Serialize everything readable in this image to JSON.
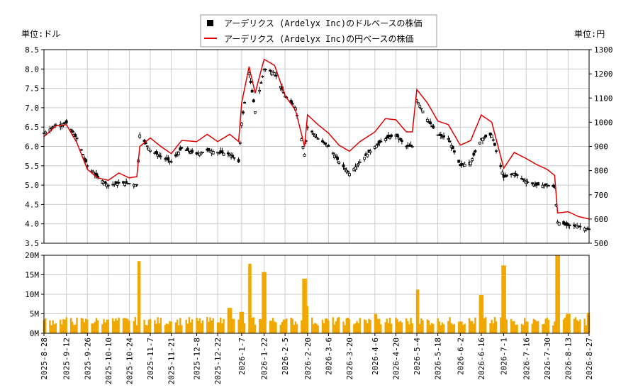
{
  "chart_data": [
    {
      "type": "candlestick",
      "legend": [
        {
          "label": "アーデリクス (Ardelyx Inc)のドルベースの株価",
          "color": "#000000",
          "marker": "square"
        },
        {
          "label": "アーデリクス (Ardelyx Inc)の円ベースの株価",
          "color": "#e00000",
          "marker": "line"
        }
      ],
      "legend_position": "top-center",
      "y_left": {
        "unit_label": "単位:ドル",
        "range": [
          3.5,
          8.5
        ],
        "ticks": [
          "3.5",
          "4.0",
          "4.5",
          "5.0",
          "5.5",
          "6.0",
          "6.5",
          "7.0",
          "7.5",
          "8.0",
          "8.5"
        ]
      },
      "y_right": {
        "unit_label": "単位:円",
        "range": [
          500,
          1300
        ],
        "ticks": [
          "500",
          "600",
          "700",
          "800",
          "900",
          "1000",
          "1100",
          "1200",
          "1300"
        ]
      },
      "x_tick_labels": [
        "2025-8-28",
        "2025-9-12",
        "2025-9-26",
        "2025-10-10",
        "2025-10-24",
        "2025-11-7",
        "2025-11-21",
        "2025-12-8",
        "2025-12-22",
        "2026-1-7",
        "2026-1-22",
        "2026-2-5",
        "2026-2-20",
        "2026-3-6",
        "2026-3-20",
        "2026-4-6",
        "2026-4-20",
        "2026-5-4",
        "2026-5-18",
        "2026-6-2",
        "2026-6-16",
        "2026-7-1",
        "2026-7-16",
        "2026-7-30",
        "2026-8-13",
        "2026-8-27"
      ],
      "grid": true,
      "usd_series": [
        {
          "x": "2025-8-28",
          "y": 6.35
        },
        {
          "x": "2025-9-5",
          "y": 6.55
        },
        {
          "x": "2025-9-12",
          "y": 6.6
        },
        {
          "x": "2025-9-19",
          "y": 6.2
        },
        {
          "x": "2025-9-26",
          "y": 5.5
        },
        {
          "x": "2025-10-3",
          "y": 5.2
        },
        {
          "x": "2025-10-10",
          "y": 5.0
        },
        {
          "x": "2025-10-17",
          "y": 5.05
        },
        {
          "x": "2025-10-24",
          "y": 5.05
        },
        {
          "x": "2025-10-29",
          "y": 5.0
        },
        {
          "x": "2025-10-31",
          "y": 6.3
        },
        {
          "x": "2025-11-7",
          "y": 5.9
        },
        {
          "x": "2025-11-14",
          "y": 5.75
        },
        {
          "x": "2025-11-21",
          "y": 5.6
        },
        {
          "x": "2025-11-28",
          "y": 5.95
        },
        {
          "x": "2025-12-8",
          "y": 5.8
        },
        {
          "x": "2025-12-15",
          "y": 5.9
        },
        {
          "x": "2025-12-22",
          "y": 5.85
        },
        {
          "x": "2025-12-30",
          "y": 5.8
        },
        {
          "x": "2026-1-5",
          "y": 5.6
        },
        {
          "x": "2026-1-7",
          "y": 6.6
        },
        {
          "x": "2026-1-12",
          "y": 7.9
        },
        {
          "x": "2026-1-16",
          "y": 6.9
        },
        {
          "x": "2026-1-22",
          "y": 8.0
        },
        {
          "x": "2026-1-29",
          "y": 7.9
        },
        {
          "x": "2026-2-5",
          "y": 7.3
        },
        {
          "x": "2026-2-12",
          "y": 7.0
        },
        {
          "x": "2026-2-18",
          "y": 5.8
        },
        {
          "x": "2026-2-20",
          "y": 6.5
        },
        {
          "x": "2026-2-27",
          "y": 6.2
        },
        {
          "x": "2026-3-6",
          "y": 6.0
        },
        {
          "x": "2026-3-13",
          "y": 5.6
        },
        {
          "x": "2026-3-20",
          "y": 5.3
        },
        {
          "x": "2026-3-27",
          "y": 5.6
        },
        {
          "x": "2026-4-6",
          "y": 6.0
        },
        {
          "x": "2026-4-13",
          "y": 6.2
        },
        {
          "x": "2026-4-20",
          "y": 6.3
        },
        {
          "x": "2026-4-27",
          "y": 6.0
        },
        {
          "x": "2026-5-1",
          "y": 6.0
        },
        {
          "x": "2026-5-4",
          "y": 7.2
        },
        {
          "x": "2026-5-11",
          "y": 6.7
        },
        {
          "x": "2026-5-18",
          "y": 6.3
        },
        {
          "x": "2026-5-25",
          "y": 6.2
        },
        {
          "x": "2026-6-2",
          "y": 5.5
        },
        {
          "x": "2026-6-9",
          "y": 5.6
        },
        {
          "x": "2026-6-16",
          "y": 6.2
        },
        {
          "x": "2026-6-23",
          "y": 6.3
        },
        {
          "x": "2026-7-1",
          "y": 5.2
        },
        {
          "x": "2026-7-8",
          "y": 5.3
        },
        {
          "x": "2026-7-16",
          "y": 5.1
        },
        {
          "x": "2026-7-23",
          "y": 5.0
        },
        {
          "x": "2026-7-30",
          "y": 5.0
        },
        {
          "x": "2026-8-4",
          "y": 4.95
        },
        {
          "x": "2026-8-6",
          "y": 4.05
        },
        {
          "x": "2026-8-13",
          "y": 3.95
        },
        {
          "x": "2026-8-20",
          "y": 3.95
        },
        {
          "x": "2026-8-27",
          "y": 3.85
        }
      ],
      "jpy_series": [
        {
          "x": "2025-8-28",
          "y": 940
        },
        {
          "x": "2025-9-5",
          "y": 985
        },
        {
          "x": "2025-9-12",
          "y": 990
        },
        {
          "x": "2025-9-19",
          "y": 915
        },
        {
          "x": "2025-9-26",
          "y": 805
        },
        {
          "x": "2025-10-3",
          "y": 770
        },
        {
          "x": "2025-10-10",
          "y": 760
        },
        {
          "x": "2025-10-17",
          "y": 790
        },
        {
          "x": "2025-10-24",
          "y": 770
        },
        {
          "x": "2025-10-29",
          "y": 775
        },
        {
          "x": "2025-10-31",
          "y": 900
        },
        {
          "x": "2025-11-7",
          "y": 935
        },
        {
          "x": "2025-11-14",
          "y": 900
        },
        {
          "x": "2025-11-21",
          "y": 870
        },
        {
          "x": "2025-11-28",
          "y": 925
        },
        {
          "x": "2025-12-8",
          "y": 920
        },
        {
          "x": "2025-12-15",
          "y": 950
        },
        {
          "x": "2025-12-22",
          "y": 920
        },
        {
          "x": "2025-12-30",
          "y": 950
        },
        {
          "x": "2026-1-5",
          "y": 920
        },
        {
          "x": "2026-1-7",
          "y": 1080
        },
        {
          "x": "2026-1-12",
          "y": 1230
        },
        {
          "x": "2026-1-16",
          "y": 1120
        },
        {
          "x": "2026-1-22",
          "y": 1260
        },
        {
          "x": "2026-1-29",
          "y": 1235
        },
        {
          "x": "2026-2-5",
          "y": 1110
        },
        {
          "x": "2026-2-12",
          "y": 1050
        },
        {
          "x": "2026-2-18",
          "y": 900
        },
        {
          "x": "2026-2-20",
          "y": 1030
        },
        {
          "x": "2026-2-27",
          "y": 990
        },
        {
          "x": "2026-3-6",
          "y": 955
        },
        {
          "x": "2026-3-13",
          "y": 905
        },
        {
          "x": "2026-3-20",
          "y": 880
        },
        {
          "x": "2026-3-27",
          "y": 920
        },
        {
          "x": "2026-4-6",
          "y": 960
        },
        {
          "x": "2026-4-13",
          "y": 1015
        },
        {
          "x": "2026-4-20",
          "y": 1010
        },
        {
          "x": "2026-4-27",
          "y": 960
        },
        {
          "x": "2026-5-1",
          "y": 960
        },
        {
          "x": "2026-5-4",
          "y": 1135
        },
        {
          "x": "2026-5-11",
          "y": 1080
        },
        {
          "x": "2026-5-18",
          "y": 1005
        },
        {
          "x": "2026-5-25",
          "y": 990
        },
        {
          "x": "2026-6-2",
          "y": 905
        },
        {
          "x": "2026-6-9",
          "y": 925
        },
        {
          "x": "2026-6-16",
          "y": 1030
        },
        {
          "x": "2026-6-23",
          "y": 1000
        },
        {
          "x": "2026-7-1",
          "y": 810
        },
        {
          "x": "2026-7-8",
          "y": 875
        },
        {
          "x": "2026-7-16",
          "y": 850
        },
        {
          "x": "2026-7-23",
          "y": 825
        },
        {
          "x": "2026-7-30",
          "y": 805
        },
        {
          "x": "2026-8-4",
          "y": 780
        },
        {
          "x": "2026-8-6",
          "y": 625
        },
        {
          "x": "2026-8-13",
          "y": 630
        },
        {
          "x": "2026-8-20",
          "y": 610
        },
        {
          "x": "2026-8-27",
          "y": 600
        }
      ]
    },
    {
      "type": "bar",
      "y_range": [
        0,
        20000000
      ],
      "y_ticks": [
        "0M",
        "5M",
        "10M",
        "15M",
        "20M"
      ],
      "bar_color": "#f0a800",
      "grid": true,
      "x_tick_labels": [
        "2025-8-28",
        "2025-9-12",
        "2025-9-26",
        "2025-10-10",
        "2025-10-24",
        "2025-11-7",
        "2025-11-21",
        "2025-12-8",
        "2025-12-22",
        "2026-1-7",
        "2026-1-22",
        "2026-2-5",
        "2026-2-20",
        "2026-3-6",
        "2026-3-20",
        "2026-4-6",
        "2026-4-20",
        "2026-5-4",
        "2026-5-18",
        "2026-6-2",
        "2026-6-16",
        "2026-7-1",
        "2026-7-16",
        "2026-7-30",
        "2026-8-13",
        "2026-8-27"
      ],
      "volume_profile": [
        {
          "x": "2025-8-28",
          "y": 3000000
        },
        {
          "x": "2025-9-12",
          "y": 3500000
        },
        {
          "x": "2025-9-26",
          "y": 3500000
        },
        {
          "x": "2025-10-10",
          "y": 3500000
        },
        {
          "x": "2025-10-24",
          "y": 3200000
        },
        {
          "x": "2025-10-31",
          "y": 18500000
        },
        {
          "x": "2025-11-7",
          "y": 3500000
        },
        {
          "x": "2025-11-21",
          "y": 3000000
        },
        {
          "x": "2025-12-8",
          "y": 3000000
        },
        {
          "x": "2025-12-22",
          "y": 2800000
        },
        {
          "x": "2025-12-30",
          "y": 6500000
        },
        {
          "x": "2026-1-7",
          "y": 5500000
        },
        {
          "x": "2026-1-12",
          "y": 17800000
        },
        {
          "x": "2026-1-22",
          "y": 15700000
        },
        {
          "x": "2026-2-5",
          "y": 3500000
        },
        {
          "x": "2026-2-18",
          "y": 14000000
        },
        {
          "x": "2026-2-20",
          "y": 7000000
        },
        {
          "x": "2026-3-6",
          "y": 3000000
        },
        {
          "x": "2026-3-20",
          "y": 3500000
        },
        {
          "x": "2026-4-6",
          "y": 5000000
        },
        {
          "x": "2026-4-20",
          "y": 3500000
        },
        {
          "x": "2026-5-4",
          "y": 11200000
        },
        {
          "x": "2026-5-18",
          "y": 3000000
        },
        {
          "x": "2026-6-2",
          "y": 3000000
        },
        {
          "x": "2026-6-16",
          "y": 9800000
        },
        {
          "x": "2026-7-1",
          "y": 17400000
        },
        {
          "x": "2026-7-16",
          "y": 3000000
        },
        {
          "x": "2026-7-30",
          "y": 3000000
        },
        {
          "x": "2026-8-6",
          "y": 20000000
        },
        {
          "x": "2026-8-13",
          "y": 5000000
        },
        {
          "x": "2026-8-27",
          "y": 5200000
        }
      ]
    }
  ]
}
